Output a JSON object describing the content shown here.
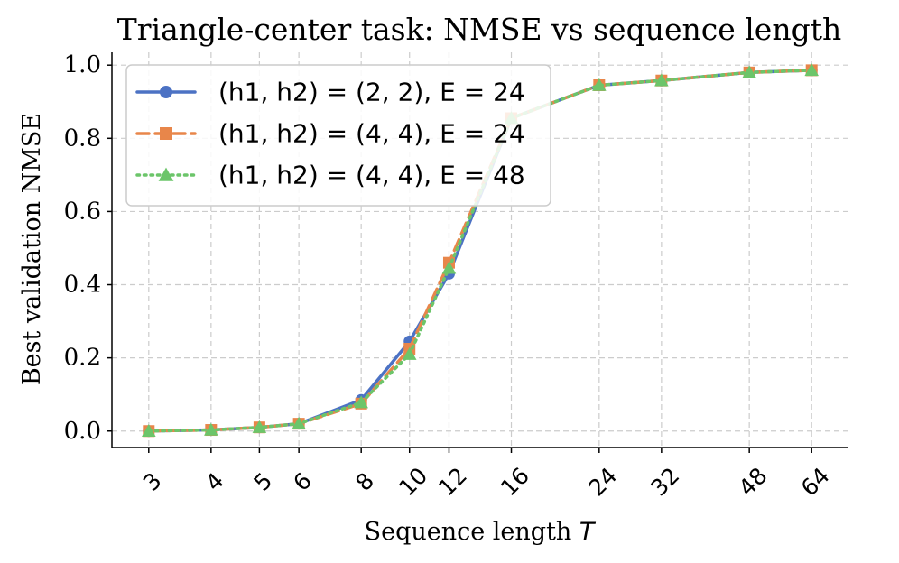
{
  "chart_data": {
    "type": "line",
    "title": "Triangle-center task: NMSE vs sequence length",
    "xlabel": "Sequence length T",
    "ylabel": "Best validation NMSE",
    "x_scale": "log",
    "x": [
      3,
      4,
      5,
      6,
      8,
      10,
      12,
      16,
      24,
      32,
      48,
      64
    ],
    "x_tick_labels": [
      "3",
      "4",
      "5",
      "6",
      "8",
      "10",
      "12",
      "16",
      "24",
      "32",
      "48",
      "64"
    ],
    "ylim": [
      -0.045,
      1.035
    ],
    "y_ticks": [
      0.0,
      0.2,
      0.4,
      0.6,
      0.8,
      1.0
    ],
    "y_tick_labels": [
      "0.0",
      "0.2",
      "0.4",
      "0.6",
      "0.8",
      "1.0"
    ],
    "grid": true,
    "legend_position": "upper-left",
    "series": [
      {
        "name": "(h1, h2) = (2, 2), E = 24",
        "color": "#4C72C4",
        "marker": "circle",
        "linestyle": "solid",
        "values": [
          0.0,
          0.003,
          0.01,
          0.02,
          0.085,
          0.245,
          0.43,
          0.855,
          0.945,
          0.958,
          0.98,
          0.986
        ]
      },
      {
        "name": "(h1, h2) = (4, 4), E = 24",
        "color": "#E8864A",
        "marker": "square",
        "linestyle": "dashed",
        "values": [
          0.0,
          0.003,
          0.01,
          0.02,
          0.075,
          0.225,
          0.46,
          0.855,
          0.945,
          0.958,
          0.98,
          0.986
        ]
      },
      {
        "name": "(h1, h2) = (4, 4), E = 48",
        "color": "#6CC56A",
        "marker": "triangle",
        "linestyle": "dotted",
        "values": [
          0.0,
          0.003,
          0.01,
          0.02,
          0.078,
          0.21,
          0.445,
          0.855,
          0.945,
          0.958,
          0.98,
          0.986
        ]
      }
    ]
  }
}
